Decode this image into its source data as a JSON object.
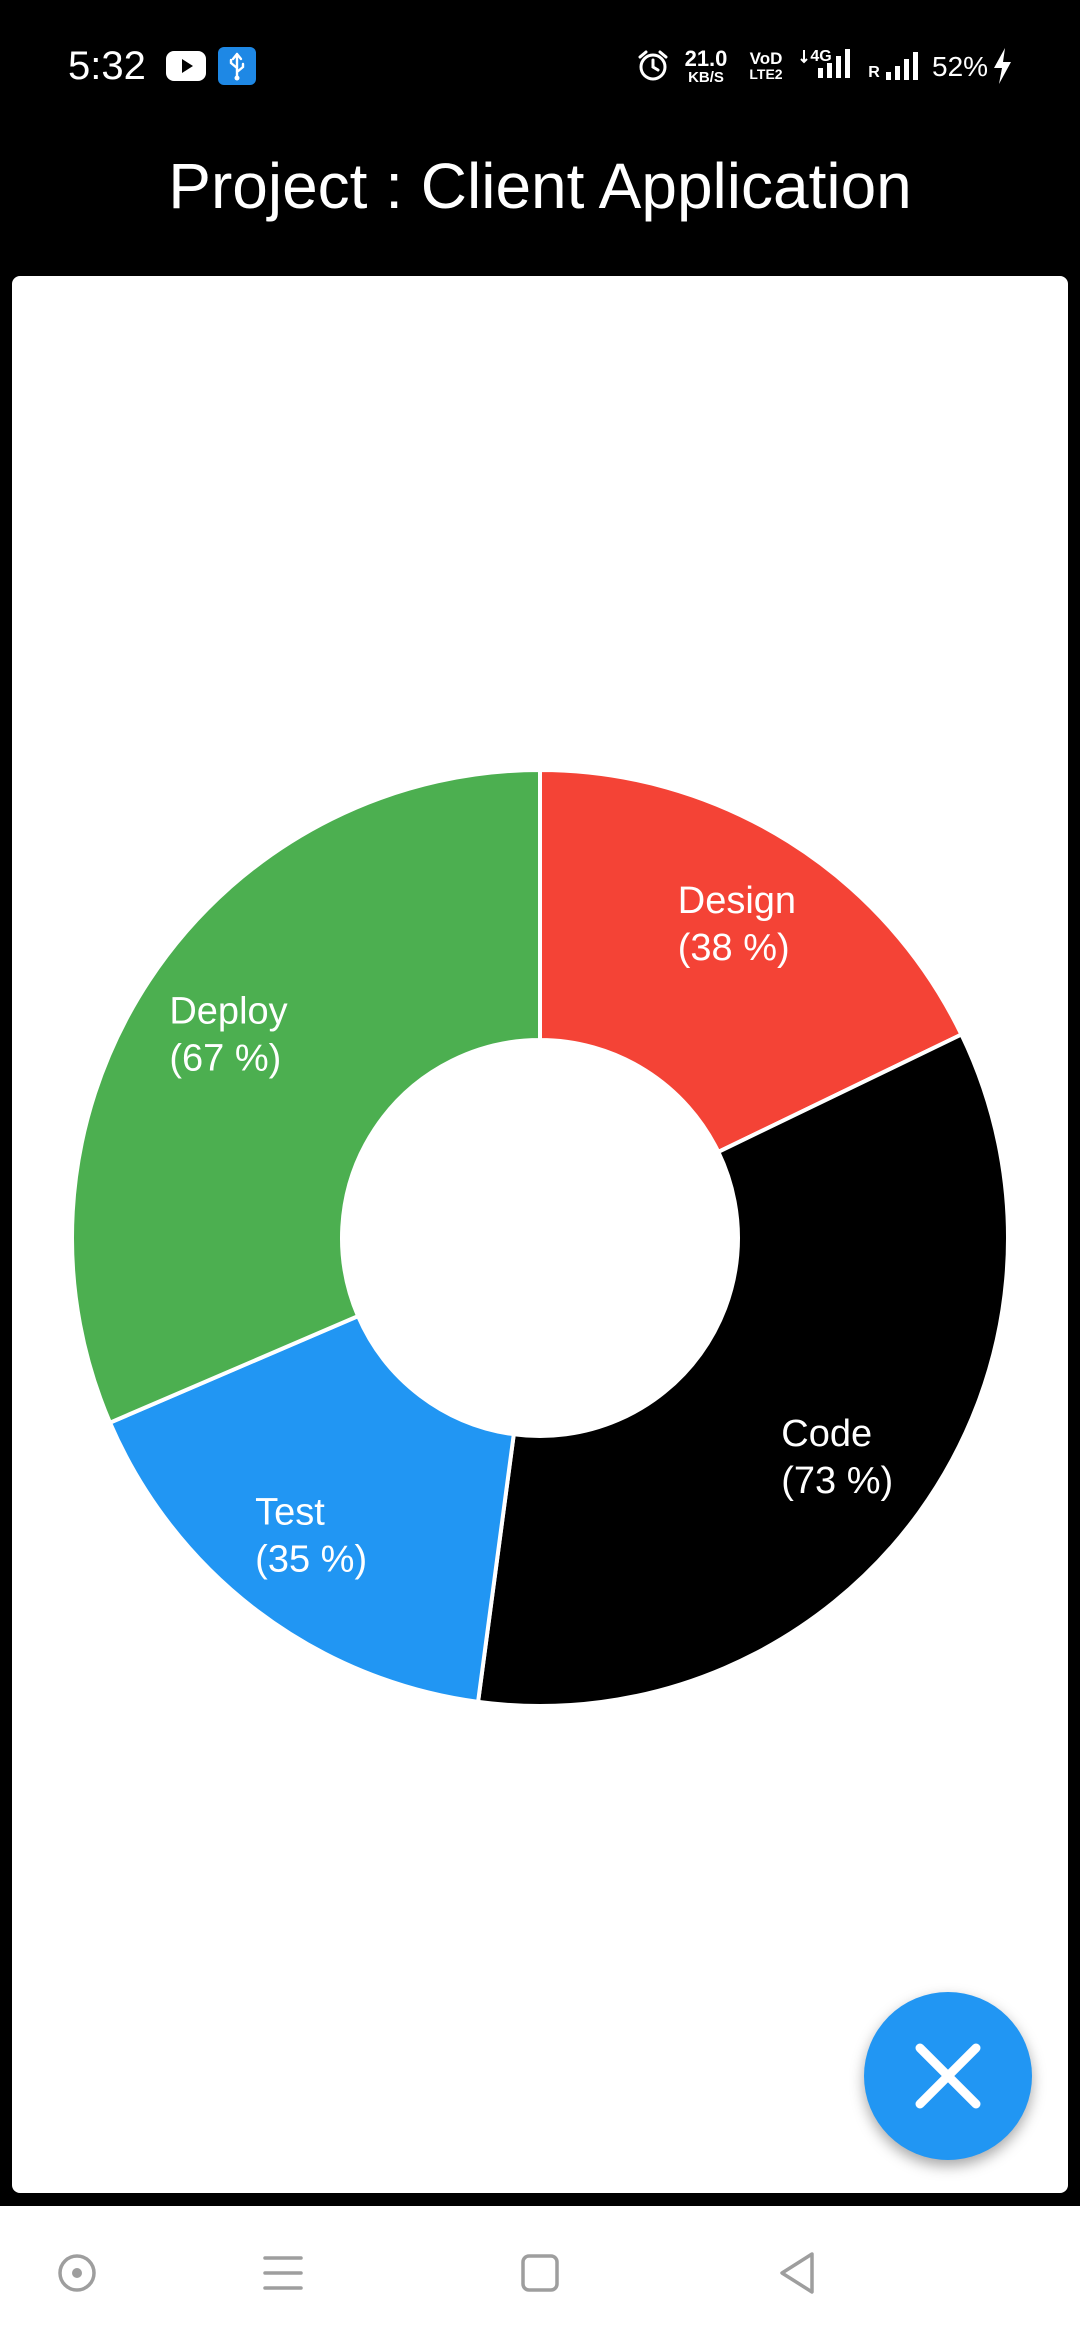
{
  "status_bar": {
    "time": "5:32",
    "network_speed_value": "21.0",
    "network_speed_unit": "KB/S",
    "volte_top": "VoD",
    "volte_bottom": "LTE2",
    "network_type": "4G",
    "roaming": "R",
    "battery": "52%",
    "icons": [
      "youtube-icon",
      "usb-icon",
      "alarm-icon",
      "signal-icon",
      "battery-charging-icon"
    ]
  },
  "title": "Project : Client Application",
  "colors": {
    "design": "#f44336",
    "code": "#000000",
    "test": "#2196f3",
    "deploy": "#4caf50",
    "fab": "#2196f3"
  },
  "chart_data": {
    "type": "pie",
    "style": "donut",
    "categories": [
      "Design",
      "Code",
      "Test",
      "Deploy"
    ],
    "values": [
      38,
      73,
      35,
      67
    ],
    "slice_labels": [
      "Design\n(38 %)",
      "Code\n(73 %)",
      "Test\n(35 %)",
      "Deploy\n(67 %)"
    ],
    "colors": [
      "#f44336",
      "#000000",
      "#2196f3",
      "#4caf50"
    ]
  },
  "fab": {
    "icon": "close-icon"
  },
  "nav_bar": {
    "icons": [
      "assistant-icon",
      "menu-icon",
      "home-icon",
      "back-icon"
    ]
  }
}
